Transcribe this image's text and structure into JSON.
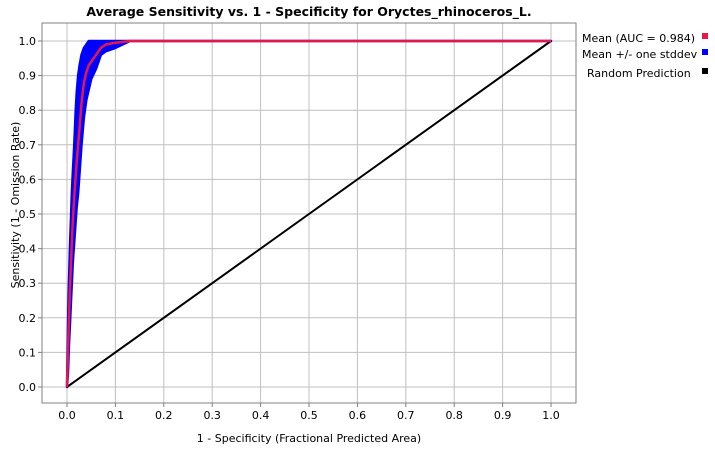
{
  "chart_data": {
    "type": "line",
    "title": "Average Sensitivity vs. 1 - Specificity for Oryctes_rhinoceros_L.",
    "xlabel": "1 - Specificity (Fractional Predicted Area)",
    "ylabel": "Sensitivity (1 - Omission Rate)",
    "xlim": [
      0.0,
      1.0
    ],
    "ylim": [
      0.0,
      1.0
    ],
    "xticks": [
      "0.0",
      "0.1",
      "0.2",
      "0.3",
      "0.4",
      "0.5",
      "0.6",
      "0.7",
      "0.8",
      "0.9",
      "1.0"
    ],
    "yticks": [
      "0.0",
      "0.1",
      "0.2",
      "0.3",
      "0.4",
      "0.5",
      "0.6",
      "0.7",
      "0.8",
      "0.9",
      "1.0"
    ],
    "grid": true,
    "legend_position": "right",
    "colors": {
      "mean": "#e8174a",
      "stddev": "#0000ff",
      "random": "#000000",
      "grid": "#c0c0c0"
    },
    "series": [
      {
        "name": "Mean (AUC = 0.984)",
        "x": [
          0.0,
          0.002,
          0.004,
          0.006,
          0.008,
          0.01,
          0.012,
          0.015,
          0.018,
          0.02,
          0.023,
          0.026,
          0.03,
          0.035,
          0.04,
          0.045,
          0.05,
          0.06,
          0.07,
          0.08,
          0.1,
          0.13,
          1.0
        ],
        "y": [
          0.0,
          0.1,
          0.2,
          0.28,
          0.35,
          0.42,
          0.48,
          0.55,
          0.61,
          0.65,
          0.7,
          0.75,
          0.82,
          0.88,
          0.91,
          0.93,
          0.94,
          0.96,
          0.98,
          0.99,
          0.995,
          1.0,
          1.0
        ]
      },
      {
        "name": "Mean +/- one stddev",
        "upper": [
          0.0,
          0.18,
          0.3,
          0.4,
          0.48,
          0.56,
          0.62,
          0.7,
          0.8,
          0.85,
          0.9,
          0.93,
          0.96,
          0.98,
          0.99,
          1.0,
          1.0,
          1.0,
          1.0,
          1.0,
          1.0,
          1.0,
          1.0
        ],
        "lower": [
          0.0,
          0.04,
          0.12,
          0.18,
          0.24,
          0.3,
          0.36,
          0.42,
          0.48,
          0.52,
          0.56,
          0.62,
          0.7,
          0.78,
          0.83,
          0.86,
          0.89,
          0.92,
          0.96,
          0.97,
          0.98,
          1.0,
          1.0
        ]
      },
      {
        "name": "Random Prediction",
        "x": [
          0.0,
          1.0
        ],
        "y": [
          0.0,
          1.0
        ]
      }
    ]
  }
}
